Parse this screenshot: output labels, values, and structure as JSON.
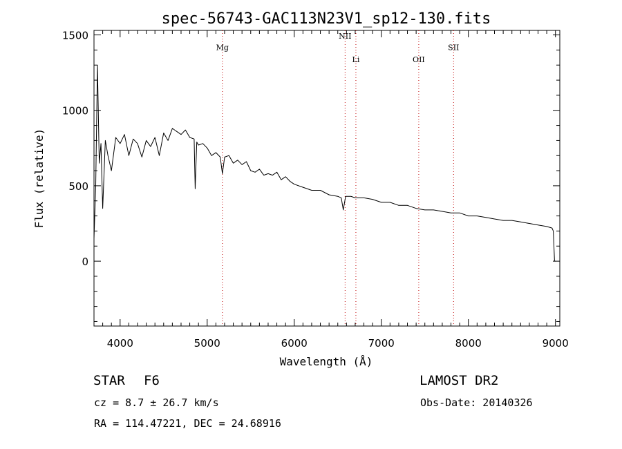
{
  "chart_data": {
    "type": "line",
    "title": "spec-56743-GAC113N23V1_sp12-130.fits",
    "xlabel": "Wavelength (Å)",
    "ylabel": "Flux (relative)",
    "xlim": [
      3700,
      9050
    ],
    "ylim": [
      -430,
      1530
    ],
    "xticks": [
      4000,
      5000,
      6000,
      7000,
      8000,
      9000
    ],
    "xtick_labels": [
      "4000",
      "5000",
      "6000",
      "7000",
      "8000",
      "9000"
    ],
    "yticks": [
      0,
      500,
      1000,
      1500
    ],
    "ytick_labels": [
      "0",
      "500",
      "1000",
      "1500"
    ],
    "grid": false,
    "series": [
      {
        "x": [
          3700,
          3720,
          3740,
          3760,
          3780,
          3800,
          3830,
          3860,
          3900,
          3950,
          4000,
          4050,
          4100,
          4150,
          4200,
          4250,
          4300,
          4350,
          4400,
          4450,
          4500,
          4550,
          4600,
          4650,
          4700,
          4750,
          4800,
          4850,
          4862,
          4880,
          4900,
          4950,
          5000,
          5050,
          5100,
          5150,
          5175,
          5200,
          5250,
          5300,
          5350,
          5400,
          5450,
          5500,
          5550,
          5600,
          5650,
          5700,
          5750,
          5800,
          5850,
          5900,
          5950,
          6000,
          6100,
          6200,
          6300,
          6400,
          6500,
          6540,
          6563,
          6590,
          6650,
          6700,
          6800,
          6900,
          7000,
          7100,
          7200,
          7300,
          7400,
          7500,
          7600,
          7700,
          7800,
          7900,
          8000,
          8100,
          8200,
          8300,
          8400,
          8500,
          8600,
          8700,
          8800,
          8900,
          8960,
          8975,
          8990,
          9000
        ],
        "y": [
          150,
          500,
          1300,
          650,
          780,
          350,
          800,
          700,
          600,
          820,
          780,
          840,
          700,
          810,
          780,
          690,
          800,
          760,
          820,
          700,
          850,
          800,
          880,
          860,
          840,
          870,
          820,
          810,
          480,
          790,
          770,
          780,
          750,
          700,
          720,
          690,
          580,
          690,
          700,
          650,
          670,
          640,
          660,
          600,
          590,
          610,
          570,
          580,
          570,
          590,
          540,
          560,
          530,
          510,
          490,
          470,
          470,
          440,
          430,
          420,
          340,
          430,
          430,
          420,
          420,
          410,
          390,
          390,
          370,
          370,
          350,
          340,
          340,
          330,
          320,
          320,
          300,
          300,
          290,
          280,
          270,
          270,
          260,
          250,
          240,
          230,
          220,
          200,
          0,
          0
        ]
      }
    ],
    "annotations": [
      {
        "label": "Mg",
        "x": 5175,
        "label_y": 1400
      },
      {
        "label": "NII",
        "x": 6584,
        "label_y": 1475
      },
      {
        "label": "Li",
        "x": 6708,
        "label_y": 1320
      },
      {
        "label": "OII",
        "x": 7430,
        "label_y": 1320
      },
      {
        "label": "SII",
        "x": 7830,
        "label_y": 1400
      }
    ]
  },
  "info": {
    "object_class": "STAR",
    "subclass": "F6",
    "survey": "LAMOST DR2",
    "cz": "cz = 8.7 ± 26.7 km/s",
    "obs_date": "Obs-Date: 20140326",
    "radec": "RA = 114.47221, DEC =  24.68916"
  }
}
